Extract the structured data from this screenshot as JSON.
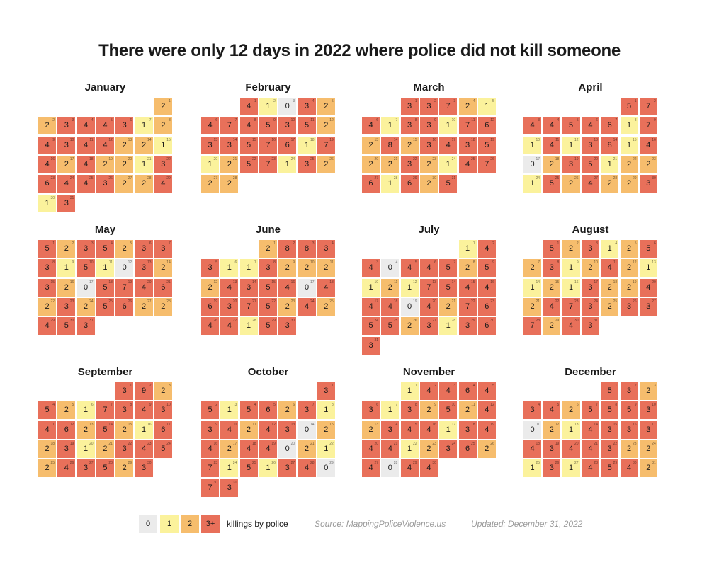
{
  "title": "There were only 12 days in 2022 where police did not kill someone",
  "colors": {
    "zero": "#ebebeb",
    "one": "#fbf29c",
    "two": "#f6bd6d",
    "three_plus": "#e8705a"
  },
  "legend": {
    "labels": [
      "0",
      "1",
      "2",
      "3+"
    ],
    "caption": "killings by police",
    "source": "Source: MappingPoliceViolence.us",
    "updated": "Updated: December 31, 2022"
  },
  "chart_data": {
    "type": "heatmap",
    "title": "There were only 12 days in 2022 where police did not kill someone",
    "year": 2022,
    "layout": "calendar, weeks start Sunday",
    "months": [
      {
        "name": "January",
        "start_weekday": 6,
        "values": [
          2,
          2,
          3,
          4,
          4,
          3,
          1,
          2,
          4,
          3,
          4,
          4,
          2,
          2,
          1,
          4,
          2,
          4,
          2,
          2,
          1,
          3,
          6,
          4,
          4,
          3,
          2,
          2,
          4,
          1,
          3
        ]
      },
      {
        "name": "February",
        "start_weekday": 2,
        "values": [
          4,
          1,
          0,
          3,
          2,
          4,
          7,
          4,
          5,
          3,
          5,
          2,
          3,
          3,
          5,
          7,
          6,
          1,
          7,
          1,
          2,
          5,
          7,
          1,
          3,
          2,
          2,
          2
        ]
      },
      {
        "name": "March",
        "start_weekday": 2,
        "values": [
          3,
          3,
          7,
          2,
          1,
          4,
          1,
          3,
          3,
          1,
          7,
          6,
          2,
          8,
          2,
          3,
          4,
          3,
          5,
          2,
          2,
          3,
          2,
          1,
          4,
          7,
          6,
          1,
          6,
          2,
          5
        ]
      },
      {
        "name": "April",
        "start_weekday": 5,
        "values": [
          5,
          7,
          4,
          4,
          5,
          4,
          6,
          1,
          7,
          1,
          4,
          1,
          3,
          8,
          1,
          4,
          0,
          2,
          3,
          5,
          1,
          2,
          2,
          1,
          5,
          2,
          4,
          2,
          2,
          3
        ]
      },
      {
        "name": "May",
        "start_weekday": 0,
        "values": [
          5,
          2,
          3,
          5,
          2,
          3,
          3,
          3,
          1,
          5,
          1,
          0,
          3,
          2,
          3,
          2,
          0,
          5,
          7,
          4,
          6,
          2,
          3,
          2,
          5,
          6,
          2,
          2,
          4,
          5,
          3
        ]
      },
      {
        "name": "June",
        "start_weekday": 3,
        "values": [
          2,
          8,
          8,
          3,
          3,
          1,
          1,
          3,
          2,
          2,
          2,
          2,
          4,
          3,
          5,
          4,
          0,
          4,
          6,
          3,
          7,
          5,
          2,
          4,
          2,
          4,
          4,
          1,
          5,
          3
        ]
      },
      {
        "name": "July",
        "start_weekday": 5,
        "values": [
          1,
          4,
          4,
          0,
          4,
          4,
          5,
          2,
          5,
          1,
          2,
          1,
          7,
          5,
          4,
          4,
          4,
          4,
          0,
          4,
          2,
          7,
          6,
          5,
          5,
          2,
          3,
          1,
          3,
          6,
          3
        ]
      },
      {
        "name": "August",
        "start_weekday": 1,
        "values": [
          5,
          2,
          3,
          1,
          2,
          5,
          2,
          3,
          1,
          2,
          4,
          2,
          1,
          1,
          2,
          1,
          3,
          2,
          2,
          4,
          2,
          4,
          7,
          3,
          2,
          3,
          3,
          7,
          2,
          4,
          3
        ]
      },
      {
        "name": "September",
        "start_weekday": 4,
        "values": [
          3,
          9,
          2,
          5,
          2,
          1,
          7,
          3,
          4,
          3,
          4,
          6,
          2,
          5,
          2,
          1,
          6,
          2,
          3,
          1,
          2,
          3,
          4,
          5,
          2,
          4,
          3,
          5,
          2,
          3
        ]
      },
      {
        "name": "October",
        "start_weekday": 6,
        "values": [
          3,
          5,
          1,
          5,
          6,
          2,
          3,
          1,
          3,
          4,
          2,
          4,
          3,
          0,
          2,
          4,
          2,
          4,
          4,
          0,
          2,
          1,
          7,
          1,
          5,
          1,
          3,
          4,
          0,
          7,
          3
        ]
      },
      {
        "name": "November",
        "start_weekday": 2,
        "values": [
          1,
          4,
          4,
          6,
          4,
          3,
          1,
          3,
          2,
          5,
          2,
          4,
          2,
          3,
          4,
          4,
          1,
          3,
          4,
          4,
          4,
          1,
          2,
          3,
          6,
          2,
          4,
          0,
          4,
          4
        ]
      },
      {
        "name": "December",
        "start_weekday": 4,
        "values": [
          5,
          3,
          2,
          3,
          4,
          2,
          5,
          5,
          5,
          3,
          0,
          2,
          1,
          4,
          3,
          3,
          3,
          4,
          3,
          4,
          4,
          3,
          2,
          2,
          1,
          3,
          1,
          4,
          5,
          4,
          2
        ]
      }
    ]
  }
}
